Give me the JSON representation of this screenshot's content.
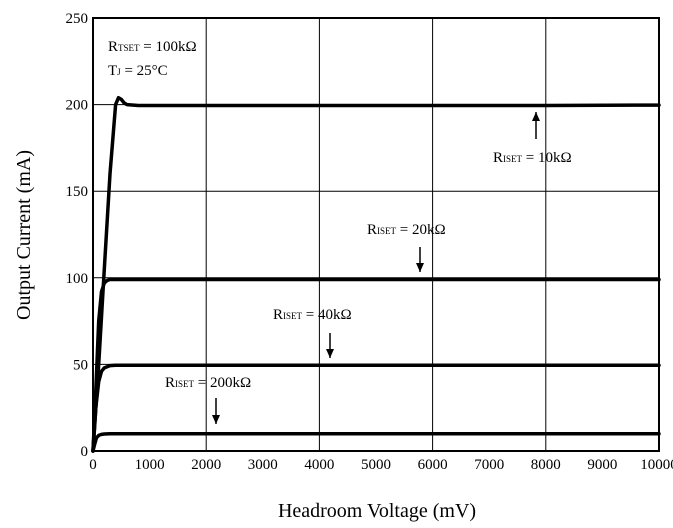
{
  "chart_data": {
    "type": "line",
    "xlabel": "Headroom Voltage (mV)",
    "ylabel": "Output Current (mA)",
    "xlim": [
      0,
      10000
    ],
    "ylim": [
      0,
      250
    ],
    "xticks": [
      0,
      1000,
      2000,
      3000,
      4000,
      5000,
      6000,
      7000,
      8000,
      9000,
      10000
    ],
    "yticks": [
      0,
      50,
      100,
      150,
      200,
      250
    ],
    "grid": true,
    "conditions": [
      {
        "main": "R",
        "sub": "TSET",
        "rest": " = 100kΩ"
      },
      {
        "main": "T",
        "sub": "J",
        "rest": " = 25°C"
      }
    ],
    "series": [
      {
        "name": "RISET = 10kΩ",
        "x": [
          0,
          100,
          200,
          300,
          400,
          450,
          500,
          550,
          600,
          800,
          1000,
          2000,
          4000,
          6000,
          8000,
          10000
        ],
        "y": [
          0,
          50,
          105,
          160,
          200,
          204,
          203,
          201,
          200,
          199.5,
          199.5,
          199.5,
          199.5,
          199.5,
          199.5,
          199.7
        ]
      },
      {
        "name": "RISET = 20kΩ",
        "x": [
          0,
          50,
          100,
          150,
          200,
          250,
          300,
          400,
          500,
          1000,
          10000
        ],
        "y": [
          0,
          35,
          75,
          92,
          97,
          98.5,
          99,
          99,
          99,
          99,
          99
        ]
      },
      {
        "name": "RISET = 40kΩ",
        "x": [
          0,
          50,
          100,
          150,
          200,
          300,
          400,
          500,
          1000,
          10000
        ],
        "y": [
          0,
          25,
          40,
          46,
          48,
          49.3,
          49.5,
          49.5,
          49.5,
          49.5
        ]
      },
      {
        "name": "RISET = 200kΩ",
        "x": [
          0,
          30,
          60,
          100,
          150,
          200,
          300,
          1000,
          10000
        ],
        "y": [
          0,
          4,
          7.5,
          9,
          9.6,
          9.8,
          10,
          10,
          10
        ]
      }
    ],
    "annotations": [
      {
        "main": "R",
        "sub": "ISET",
        "rest": " = 10kΩ",
        "arrow": "up"
      },
      {
        "main": "R",
        "sub": "ISET",
        "rest": " = 20kΩ",
        "arrow": "down"
      },
      {
        "main": "R",
        "sub": "ISET",
        "rest": " = 40kΩ",
        "arrow": "down"
      },
      {
        "main": "R",
        "sub": "ISET",
        "rest": " = 200kΩ",
        "arrow": "down"
      }
    ]
  }
}
